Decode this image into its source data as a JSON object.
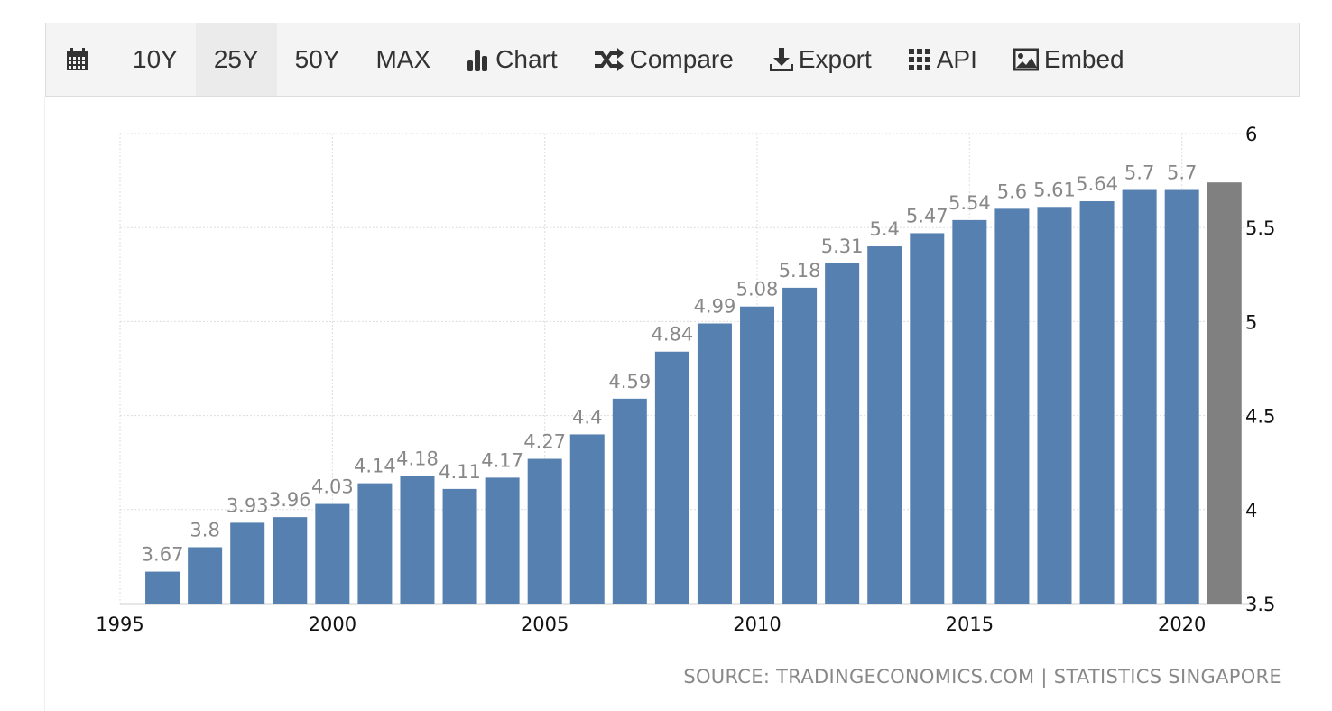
{
  "toolbar": {
    "calendar_icon": "calendar-icon",
    "ranges": [
      "10Y",
      "25Y",
      "50Y",
      "MAX"
    ],
    "active_range": "25Y",
    "chart_label": "Chart",
    "compare_label": "Compare",
    "export_label": "Export",
    "api_label": "API",
    "embed_label": "Embed"
  },
  "source": "SOURCE: TRADINGECONOMICS.COM | STATISTICS SINGAPORE",
  "colors": {
    "bar": "#5580b0",
    "forecast": "#808080",
    "label": "#888888"
  },
  "chart_data": {
    "type": "bar",
    "x": [
      1996,
      1997,
      1998,
      1999,
      2000,
      2001,
      2002,
      2003,
      2004,
      2005,
      2006,
      2007,
      2008,
      2009,
      2010,
      2011,
      2012,
      2013,
      2014,
      2015,
      2016,
      2017,
      2018,
      2019,
      2020
    ],
    "values": [
      3.67,
      3.8,
      3.93,
      3.96,
      4.03,
      4.14,
      4.18,
      4.11,
      4.17,
      4.27,
      4.4,
      4.59,
      4.84,
      4.99,
      5.08,
      5.18,
      5.31,
      5.4,
      5.47,
      5.54,
      5.6,
      5.61,
      5.64,
      5.7,
      5.7
    ],
    "forecast": {
      "x": 2021,
      "value": 5.74
    },
    "xticks": [
      1995,
      2000,
      2005,
      2010,
      2015,
      2020
    ],
    "yticks": [
      3.5,
      4,
      4.5,
      5,
      5.5,
      6
    ],
    "xlim": [
      1995,
      2021.6
    ],
    "ylim": [
      3.5,
      6
    ],
    "grid": true,
    "yaxis_position": "right"
  }
}
